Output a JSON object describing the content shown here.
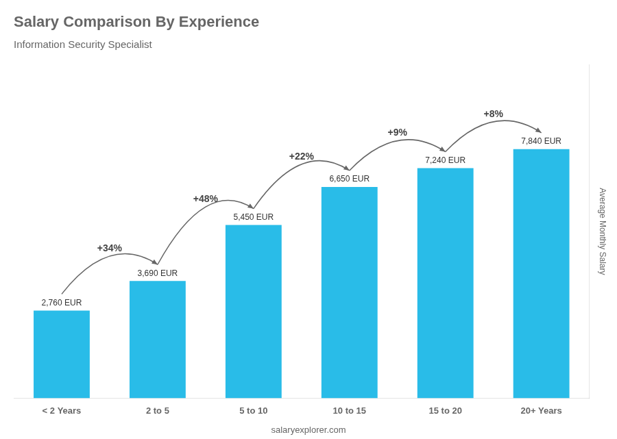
{
  "chart_data": {
    "type": "bar",
    "title": "Salary Comparison By Experience",
    "subtitle": "Information Security Specialist",
    "categories": [
      "< 2 Years",
      "2 to 5",
      "5 to 10",
      "10 to 15",
      "15 to 20",
      "20+ Years"
    ],
    "values": [
      2760,
      3690,
      5450,
      6650,
      7240,
      7840
    ],
    "value_labels": [
      "2,760 EUR",
      "3,690 EUR",
      "5,450 EUR",
      "6,650 EUR",
      "7,240 EUR",
      "7,840 EUR"
    ],
    "data_labels": true,
    "color": "#29bce8",
    "ylabel": "Average Monthly Salary",
    "ylim": [
      0,
      10500
    ],
    "yticks": [],
    "tick_labels": "x",
    "grid": false,
    "annotations": [
      "+34%",
      "+48%",
      "+22%",
      "+9%",
      "+8%"
    ],
    "footer": "salaryexplorer.com"
  }
}
